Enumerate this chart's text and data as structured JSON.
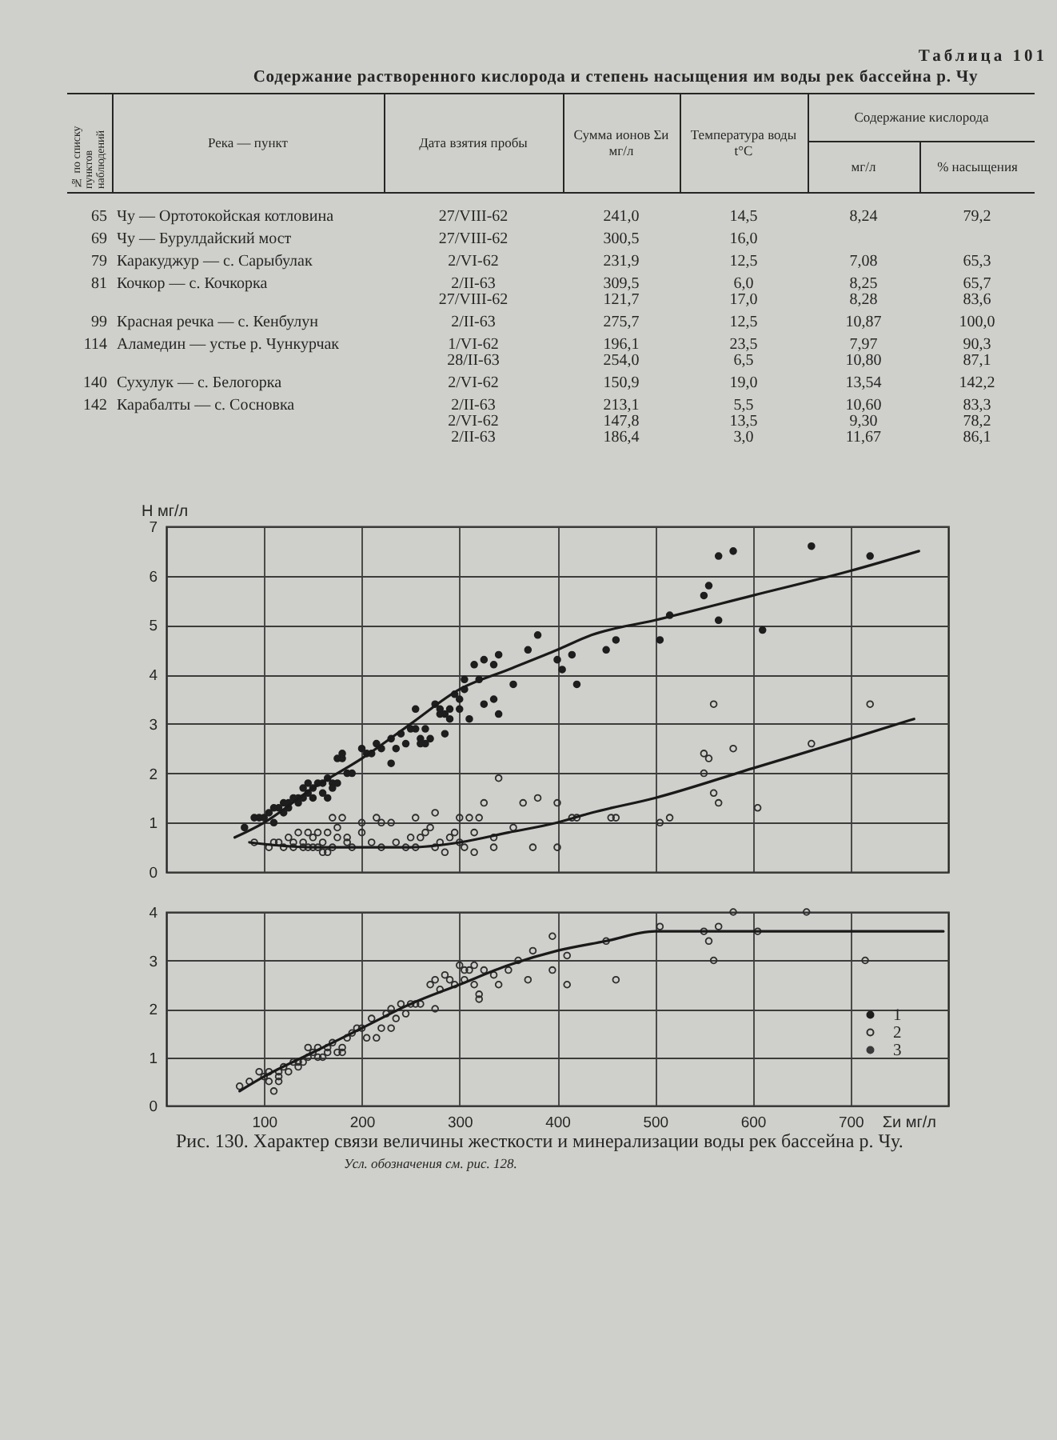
{
  "chart_data": [
    {
      "type": "other",
      "title": "Содержание растворенного кислорода и степень насыщения им воды рек бассейна р. Чу",
      "annotations": [
        "Таблица 101",
        "Содержание кислорода"
      ],
      "categories": [
        "№ по списку пунктов наблюдений",
        "Река — пункт",
        "Дата взятия пробы",
        "Сумма ионов Σи мг/л",
        "Температура воды t°C",
        "мг/л",
        "% насыщения"
      ],
      "cell_labels": [
        [
          "65",
          "Чу — Ортотокойская котловина",
          "27/VIII-62",
          "241,0",
          "14,5",
          "8,24",
          "79,2"
        ],
        [
          "69",
          "Чу — Бурулдайский мост",
          "27/VIII-62",
          "300,5",
          "16,0",
          null,
          null
        ],
        [
          "79",
          "Каракуджур — с. Сарыбулак",
          "2/VI-62",
          "231,9",
          "12,5",
          "7,08",
          "65,3"
        ],
        [
          "81",
          "Кочкор — с. Кочкорка",
          "2/II-63",
          "309,5",
          "6,0",
          "8,25",
          "65,7"
        ],
        [
          null,
          null,
          "27/VIII-62",
          "121,7",
          "17,0",
          "8,28",
          "83,6"
        ],
        [
          "99",
          "Красная речка — с. Кенбулун",
          "2/II-63",
          "275,7",
          "12,5",
          "10,87",
          "100,0"
        ],
        [
          "114",
          "Аламедин — устье р. Чункурчак",
          "1/VI-62",
          "196,1",
          "23,5",
          "7,97",
          "90,3"
        ],
        [
          null,
          null,
          "28/II-63",
          "254,0",
          "6,5",
          "10,80",
          "87,1"
        ],
        [
          "140",
          "Сухулук — с. Белогорка",
          "2/VI-62",
          "150,9",
          "19,0",
          "13,54",
          "142,2"
        ],
        [
          "142",
          "Карабалты — с. Сосновка",
          "2/II-63",
          "213,1",
          "5,5",
          "10,60",
          "83,3"
        ],
        [
          null,
          null,
          "2/VI-62",
          "147,8",
          "13,5",
          "9,30",
          "78,2"
        ],
        [
          null,
          null,
          "2/II-63",
          "186,4",
          "3,0",
          "11,67",
          "86,1"
        ]
      ]
    },
    {
      "type": "scatter",
      "ylabel": "H мг/л",
      "xlim": [
        0,
        800
      ],
      "ylim": [
        0,
        7
      ],
      "xticks": [
        100,
        200,
        300,
        400,
        500,
        600,
        700
      ],
      "yticks": [
        0,
        1,
        2,
        3,
        4,
        5,
        6,
        7
      ],
      "tick_labels": "y",
      "grid": true,
      "marker": "circle",
      "line_style": "solid",
      "series": [
        {
          "color": "#1e1e1e",
          "x": [
            80,
            90,
            95,
            100,
            105,
            110,
            115,
            120,
            125,
            130,
            135,
            135,
            140,
            145,
            150,
            150,
            155,
            160,
            165,
            165,
            170,
            175,
            180,
            180,
            185,
            190,
            200,
            205,
            210,
            215,
            220,
            230,
            230,
            235,
            240,
            245,
            250,
            255,
            260,
            265,
            265,
            270,
            275,
            280,
            285,
            290,
            295,
            300,
            305,
            310,
            315,
            320,
            325,
            325,
            335,
            335,
            340,
            340,
            355,
            370,
            380,
            400,
            405,
            415,
            420,
            450,
            460,
            505,
            515,
            550,
            555,
            565,
            565,
            580,
            610,
            660,
            720,
            110,
            120,
            125,
            140,
            145,
            160,
            170,
            175,
            255,
            260,
            280,
            285,
            290,
            300,
            305
          ],
          "values": [
            0.9,
            1.1,
            1.1,
            1.1,
            1.2,
            1.3,
            1.3,
            1.4,
            1.4,
            1.5,
            1.4,
            1.5,
            1.7,
            1.8,
            1.7,
            1.5,
            1.8,
            1.8,
            1.9,
            1.5,
            1.8,
            2.3,
            2.3,
            2.4,
            2.0,
            2.0,
            2.5,
            2.4,
            2.4,
            2.6,
            2.5,
            2.2,
            2.7,
            2.5,
            2.8,
            2.6,
            2.9,
            3.3,
            2.7,
            2.9,
            2.6,
            2.7,
            3.4,
            3.2,
            2.8,
            3.3,
            3.6,
            3.5,
            3.9,
            3.1,
            4.2,
            3.9,
            3.4,
            4.3,
            4.2,
            3.5,
            3.2,
            4.4,
            3.8,
            4.5,
            4.8,
            4.3,
            4.1,
            4.4,
            3.8,
            4.5,
            4.7,
            4.7,
            5.2,
            5.6,
            5.8,
            6.4,
            5.1,
            6.5,
            4.9,
            6.6,
            6.4,
            1.0,
            1.2,
            1.3,
            1.5,
            1.6,
            1.6,
            1.7,
            1.8,
            2.9,
            2.6,
            3.3,
            3.2,
            3.1,
            3.3,
            3.7
          ]
        },
        {
          "color": "#2e2e2e",
          "x": [
            90,
            105,
            110,
            115,
            120,
            125,
            130,
            135,
            140,
            140,
            145,
            150,
            150,
            155,
            160,
            165,
            165,
            170,
            175,
            180,
            185,
            185,
            190,
            200,
            200,
            210,
            215,
            220,
            220,
            230,
            235,
            245,
            250,
            255,
            255,
            260,
            265,
            270,
            275,
            275,
            280,
            285,
            290,
            295,
            300,
            300,
            305,
            310,
            315,
            315,
            320,
            325,
            335,
            335,
            340,
            355,
            365,
            375,
            380,
            400,
            400,
            415,
            420,
            455,
            460,
            505,
            515,
            550,
            550,
            555,
            560,
            560,
            565,
            580,
            605,
            660,
            720,
            130,
            145,
            155,
            160,
            170,
            175
          ],
          "values": [
            0.6,
            0.5,
            0.6,
            0.6,
            0.5,
            0.7,
            0.5,
            0.8,
            0.6,
            0.5,
            0.8,
            0.5,
            0.7,
            0.8,
            0.6,
            0.8,
            0.4,
            1.1,
            0.9,
            1.1,
            0.7,
            0.6,
            0.5,
            1.0,
            0.8,
            0.6,
            1.1,
            1.0,
            0.5,
            1.0,
            0.6,
            0.5,
            0.7,
            1.1,
            0.5,
            0.7,
            0.8,
            0.9,
            1.2,
            0.5,
            0.6,
            0.4,
            0.7,
            0.8,
            1.1,
            0.6,
            0.5,
            1.1,
            0.8,
            0.4,
            1.1,
            1.4,
            0.7,
            0.5,
            1.9,
            0.9,
            1.4,
            0.5,
            1.5,
            1.4,
            0.5,
            1.1,
            1.1,
            1.1,
            1.1,
            1.0,
            1.1,
            2.0,
            2.4,
            2.3,
            3.4,
            1.6,
            1.4,
            2.5,
            1.3,
            2.6,
            3.4,
            0.6,
            0.5,
            0.5,
            0.4,
            0.5,
            0.7
          ]
        },
        {
          "type": "line",
          "marker": "none",
          "color": "#1a1a1a",
          "x": [
            70,
            100,
            150,
            200,
            250,
            300,
            350,
            400,
            435,
            500,
            600,
            700,
            770
          ],
          "values": [
            0.7,
            1.0,
            1.7,
            2.3,
            3.0,
            3.7,
            4.1,
            4.5,
            4.8,
            5.1,
            5.6,
            6.1,
            6.5
          ]
        },
        {
          "type": "line",
          "marker": "none",
          "color": "#1a1a1a",
          "x": [
            85,
            150,
            200,
            250,
            300,
            350,
            400,
            435,
            500,
            600,
            700,
            765
          ],
          "values": [
            0.6,
            0.5,
            0.5,
            0.5,
            0.6,
            0.8,
            1.0,
            1.2,
            1.5,
            2.1,
            2.7,
            3.1
          ]
        }
      ]
    },
    {
      "type": "scatter",
      "xlabel": "Σи мг/л",
      "xlim": [
        0,
        800
      ],
      "ylim": [
        0,
        4
      ],
      "xticks": [
        100,
        200,
        300,
        400,
        500,
        600,
        700
      ],
      "yticks": [
        0,
        1,
        2,
        3,
        4
      ],
      "grid": true,
      "legend": "bottom right",
      "marker": "circle",
      "line_style": "solid",
      "annotations": [
        "Рис. 130. Характер связи величины жесткости и минерализации воды рек бассейна р. Чу.",
        "Усл. обозначения см. рис. 128."
      ],
      "series": [
        {
          "name": "1",
          "color": "#1e1e1e"
        },
        {
          "name": "2",
          "color": "#2e2e2e",
          "x": [
            75,
            85,
            95,
            100,
            105,
            105,
            110,
            115,
            115,
            115,
            120,
            125,
            130,
            135,
            135,
            140,
            145,
            145,
            150,
            155,
            155,
            160,
            165,
            165,
            170,
            175,
            180,
            180,
            185,
            190,
            195,
            200,
            205,
            210,
            215,
            220,
            225,
            230,
            230,
            235,
            240,
            245,
            250,
            255,
            260,
            270,
            275,
            275,
            280,
            285,
            290,
            295,
            300,
            305,
            305,
            310,
            315,
            315,
            320,
            320,
            325,
            335,
            340,
            350,
            360,
            370,
            375,
            395,
            395,
            410,
            410,
            450,
            460,
            505,
            550,
            555,
            560,
            565,
            580,
            605,
            655,
            715
          ],
          "values": [
            0.4,
            0.5,
            0.7,
            0.6,
            0.7,
            0.5,
            0.3,
            0.7,
            0.5,
            0.6,
            0.8,
            0.7,
            0.9,
            0.8,
            0.9,
            0.9,
            1.2,
            1.0,
            1.1,
            1.0,
            1.2,
            1.0,
            1.2,
            1.1,
            1.3,
            1.1,
            1.2,
            1.1,
            1.4,
            1.5,
            1.6,
            1.6,
            1.4,
            1.8,
            1.4,
            1.6,
            1.9,
            1.6,
            2.0,
            1.8,
            2.1,
            1.9,
            2.1,
            2.1,
            2.1,
            2.5,
            2.0,
            2.6,
            2.4,
            2.7,
            2.6,
            2.5,
            2.9,
            2.6,
            2.8,
            2.8,
            2.9,
            2.5,
            2.2,
            2.3,
            2.8,
            2.7,
            2.5,
            2.8,
            3.0,
            2.6,
            3.2,
            2.8,
            3.5,
            3.1,
            2.5,
            3.4,
            2.6,
            3.7,
            3.6,
            3.4,
            3.0,
            3.7,
            4.0,
            3.6,
            4.0,
            3.0
          ]
        },
        {
          "name": "3",
          "color": "#3a3a3a"
        },
        {
          "type": "line",
          "marker": "none",
          "color": "#1a1a1a",
          "x": [
            75,
            100,
            150,
            200,
            250,
            300,
            350,
            400,
            450,
            500,
            600,
            700,
            795
          ],
          "values": [
            0.3,
            0.6,
            1.1,
            1.6,
            2.1,
            2.5,
            2.9,
            3.2,
            3.4,
            3.6,
            3.6,
            3.6,
            3.6
          ]
        }
      ]
    }
  ]
}
